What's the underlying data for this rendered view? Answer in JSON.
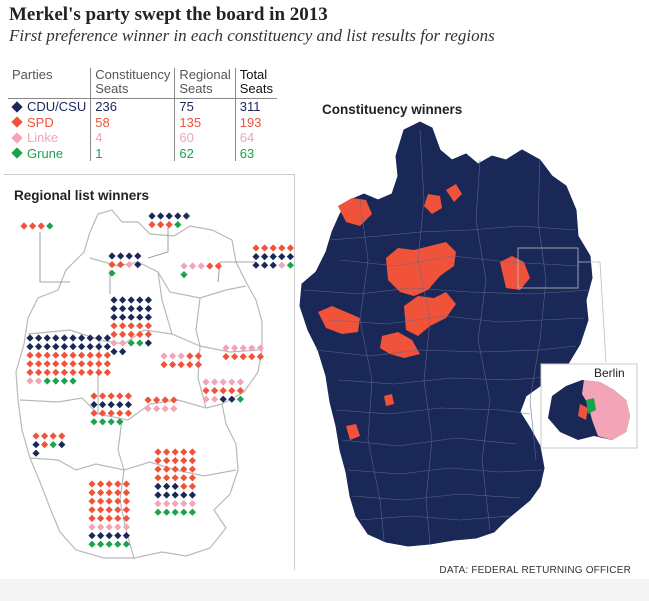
{
  "title": "Merkel's party swept the board in 2013",
  "subtitle": "First preference winner in each constituency and list results for regions",
  "table": {
    "headers": {
      "party": "Parties",
      "constituency": [
        "Constituency",
        "Seats"
      ],
      "regional": [
        "Regional",
        "Seats"
      ],
      "total": [
        "Total",
        "Seats"
      ]
    },
    "rows": [
      {
        "party": "CDU/CSU",
        "constituency": "236",
        "regional": "75",
        "total": "311",
        "color": "#1a2857"
      },
      {
        "party": "SPD",
        "constituency": "58",
        "regional": "135",
        "total": "193",
        "color": "#f0523a"
      },
      {
        "party": "Linke",
        "constituency": "4",
        "regional": "60",
        "total": "64",
        "color": "#f3a4b6"
      },
      {
        "party": "Grune",
        "constituency": "1",
        "regional": "62",
        "total": "63",
        "color": "#1aa34a"
      }
    ]
  },
  "regional_title": "Regional list winners",
  "constituency_title": "Constituency winners",
  "berlin_label": "Berlin",
  "source": "DATA: FEDERAL RETURNING OFFICER",
  "colors": {
    "cdu": "#1a2857",
    "spd": "#f0523a",
    "linke": "#f3a4b6",
    "grune": "#1aa34a",
    "border": "#b9b9b9"
  }
}
